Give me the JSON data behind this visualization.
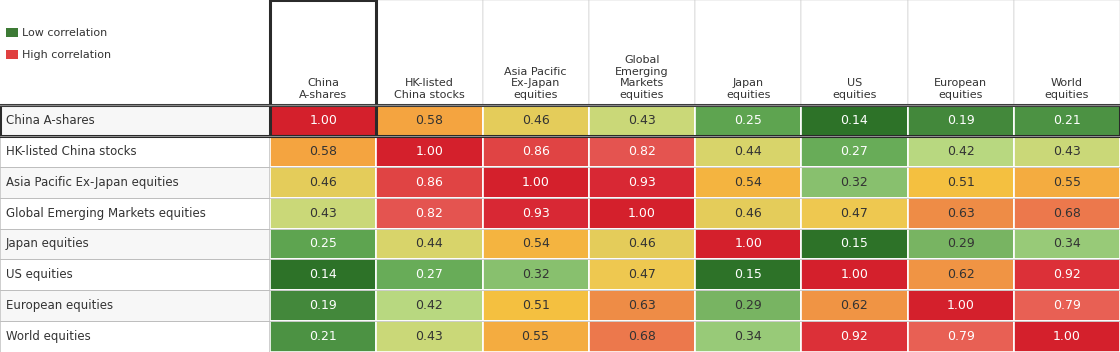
{
  "row_labels": [
    "China A-shares",
    "HK-listed China stocks",
    "Asia Pacific Ex-Japan equities",
    "Global Emerging Markets equities",
    "Japan equities",
    "US equities",
    "European equities",
    "World equities"
  ],
  "col_labels": [
    "China\nA-shares",
    "HK-listed\nChina stocks",
    "Asia Pacific\nEx-Japan\nequities",
    "Global\nEmerging\nMarkets\nequities",
    "Japan\nequities",
    "US\nequities",
    "European\nequities",
    "World\nequities"
  ],
  "values": [
    [
      1.0,
      0.58,
      0.46,
      0.43,
      0.25,
      0.14,
      0.19,
      0.21
    ],
    [
      0.58,
      1.0,
      0.86,
      0.82,
      0.44,
      0.27,
      0.42,
      0.43
    ],
    [
      0.46,
      0.86,
      1.0,
      0.93,
      0.54,
      0.32,
      0.51,
      0.55
    ],
    [
      0.43,
      0.82,
      0.93,
      1.0,
      0.46,
      0.47,
      0.63,
      0.68
    ],
    [
      0.25,
      0.44,
      0.54,
      0.46,
      1.0,
      0.15,
      0.29,
      0.34
    ],
    [
      0.14,
      0.27,
      0.32,
      0.47,
      0.15,
      1.0,
      0.62,
      0.92
    ],
    [
      0.19,
      0.42,
      0.51,
      0.63,
      0.29,
      0.62,
      1.0,
      0.79
    ],
    [
      0.21,
      0.43,
      0.55,
      0.68,
      0.34,
      0.92,
      0.79,
      1.0
    ]
  ],
  "color_stops": {
    "0.00": "#2d6e2a",
    "0.15": "#2d7028",
    "0.20": "#3a7d35",
    "0.25": "#5a9e50",
    "0.30": "#7ab870",
    "0.35": "#9dc87a",
    "0.40": "#c5d87a",
    "0.43": "#d8d870",
    "0.46": "#e8d860",
    "0.50": "#f5d040",
    "0.54": "#f5c040",
    "0.58": "#f5b040",
    "0.62": "#f5a040",
    "0.65": "#f08858",
    "0.68": "#ef8055",
    "0.79": "#e86050",
    "0.82": "#e85050",
    "0.86": "#e04040",
    "0.92": "#e03030",
    "0.93": "#d82828",
    "1.00": "#d82020"
  },
  "legend_low_color": "#3d7a35",
  "legend_high_color": "#e04040",
  "bg_color": "#ffffff",
  "row_border_color": "#bbbbbb",
  "highlight_border_color": "#2a2a2a",
  "text_dark": "#333333",
  "text_white": "#ffffff",
  "cell_fontsize": 9,
  "header_fontsize": 8,
  "rowlabel_fontsize": 8.5,
  "legend_fontsize": 8
}
